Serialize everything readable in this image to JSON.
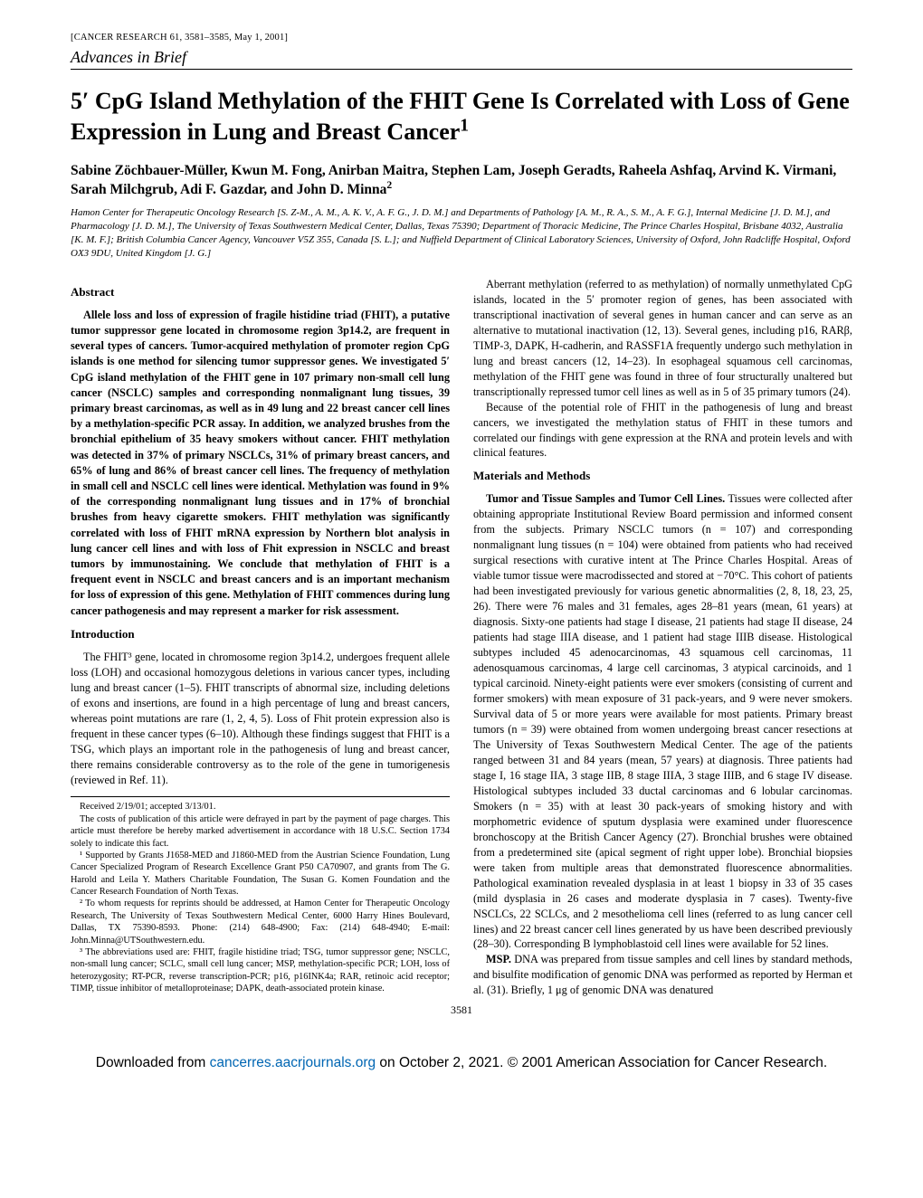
{
  "header_ref": "[CANCER RESEARCH 61, 3581–3585, May 1, 2001]",
  "section_label": "Advances in Brief",
  "title": "5′ CpG Island Methylation of the FHIT Gene Is Correlated with Loss of Gene Expression in Lung and Breast Cancer",
  "title_sup": "1",
  "authors": "Sabine Zöchbauer-Müller, Kwun M. Fong, Anirban Maitra, Stephen Lam, Joseph Geradts, Raheela Ashfaq, Arvind K. Virmani, Sarah Milchgrub, Adi F. Gazdar, and John D. Minna",
  "authors_sup": "2",
  "affiliations": "Hamon Center for Therapeutic Oncology Research [S. Z-M., A. M., A. K. V., A. F. G., J. D. M.] and Departments of Pathology [A. M., R. A., S. M., A. F. G.], Internal Medicine [J. D. M.], and Pharmacology [J. D. M.], The University of Texas Southwestern Medical Center, Dallas, Texas 75390; Department of Thoracic Medicine, The Prince Charles Hospital, Brisbane 4032, Australia [K. M. F.]; British Columbia Cancer Agency, Vancouver V5Z 355, Canada [S. L.]; and Nuffield Department of Clinical Laboratory Sciences, University of Oxford, John Radcliffe Hospital, Oxford OX3 9DU, United Kingdom [J. G.]",
  "left": {
    "abstract_h": "Abstract",
    "abstract": "Allele loss and loss of expression of fragile histidine triad (FHIT), a putative tumor suppressor gene located in chromosome region 3p14.2, are frequent in several types of cancers. Tumor-acquired methylation of promoter region CpG islands is one method for silencing tumor suppressor genes. We investigated 5′ CpG island methylation of the FHIT gene in 107 primary non-small cell lung cancer (NSCLC) samples and corresponding nonmalignant lung tissues, 39 primary breast carcinomas, as well as in 49 lung and 22 breast cancer cell lines by a methylation-specific PCR assay. In addition, we analyzed brushes from the bronchial epithelium of 35 heavy smokers without cancer. FHIT methylation was detected in 37% of primary NSCLCs, 31% of primary breast cancers, and 65% of lung and 86% of breast cancer cell lines. The frequency of methylation in small cell and NSCLC cell lines were identical. Methylation was found in 9% of the corresponding nonmalignant lung tissues and in 17% of bronchial brushes from heavy cigarette smokers. FHIT methylation was significantly correlated with loss of FHIT mRNA expression by Northern blot analysis in lung cancer cell lines and with loss of Fhit expression in NSCLC and breast tumors by immunostaining. We conclude that methylation of FHIT is a frequent event in NSCLC and breast cancers and is an important mechanism for loss of expression of this gene. Methylation of FHIT commences during lung cancer pathogenesis and may represent a marker for risk assessment.",
    "intro_h": "Introduction",
    "intro": "The FHIT³ gene, located in chromosome region 3p14.2, undergoes frequent allele loss (LOH) and occasional homozygous deletions in various cancer types, including lung and breast cancer (1–5). FHIT transcripts of abnormal size, including deletions of exons and insertions, are found in a high percentage of lung and breast cancers, whereas point mutations are rare (1, 2, 4, 5). Loss of Fhit protein expression also is frequent in these cancer types (6–10). Although these findings suggest that FHIT is a TSG, which plays an important role in the pathogenesis of lung and breast cancer, there remains considerable controversy as to the role of the gene in tumorigenesis (reviewed in Ref. 11).",
    "fn_received": "Received 2/19/01; accepted 3/13/01.",
    "fn_costs": "The costs of publication of this article were defrayed in part by the payment of page charges. This article must therefore be hereby marked advertisement in accordance with 18 U.S.C. Section 1734 solely to indicate this fact.",
    "fn1": "¹ Supported by Grants J1658-MED and J1860-MED from the Austrian Science Foundation, Lung Cancer Specialized Program of Research Excellence Grant P50 CA70907, and grants from The G. Harold and Leila Y. Mathers Charitable Foundation, The Susan G. Komen Foundation and the Cancer Research Foundation of North Texas.",
    "fn2": "² To whom requests for reprints should be addressed, at Hamon Center for Therapeutic Oncology Research, The University of Texas Southwestern Medical Center, 6000 Harry Hines Boulevard, Dallas, TX 75390-8593. Phone: (214) 648-4900; Fax: (214) 648-4940; E-mail: John.Minna@UTSouthwestern.edu.",
    "fn3": "³ The abbreviations used are: FHIT, fragile histidine triad; TSG, tumor suppressor gene; NSCLC, non-small lung cancer; SCLC, small cell lung cancer; MSP, methylation-specific PCR; LOH, loss of heterozygosity; RT-PCR, reverse transcription-PCR; p16, p16INK4a; RAR, retinoic acid receptor; TIMP, tissue inhibitor of metalloproteinase; DAPK, death-associated protein kinase."
  },
  "right": {
    "p1": "Aberrant methylation (referred to as methylation) of normally unmethylated CpG islands, located in the 5′ promoter region of genes, has been associated with transcriptional inactivation of several genes in human cancer and can serve as an alternative to mutational inactivation (12, 13). Several genes, including p16, RARβ, TIMP-3, DAPK, H-cadherin, and RASSF1A frequently undergo such methylation in lung and breast cancers (12, 14–23). In esophageal squamous cell carcinomas, methylation of the FHIT gene was found in three of four structurally unaltered but transcriptionally repressed tumor cell lines as well as in 5 of 35 primary tumors (24).",
    "p2": "Because of the potential role of FHIT in the pathogenesis of lung and breast cancers, we investigated the methylation status of FHIT in these tumors and correlated our findings with gene expression at the RNA and protein levels and with clinical features.",
    "mm_h": "Materials and Methods",
    "mm_runin1": "Tumor and Tissue Samples and Tumor Cell Lines.",
    "mm1": " Tissues were collected after obtaining appropriate Institutional Review Board permission and informed consent from the subjects. Primary NSCLC tumors (n = 107) and corresponding nonmalignant lung tissues (n = 104) were obtained from patients who had received surgical resections with curative intent at The Prince Charles Hospital. Areas of viable tumor tissue were macrodissected and stored at −70°C. This cohort of patients had been investigated previously for various genetic abnormalities (2, 8, 18, 23, 25, 26). There were 76 males and 31 females, ages 28–81 years (mean, 61 years) at diagnosis. Sixty-one patients had stage I disease, 21 patients had stage II disease, 24 patients had stage IIIA disease, and 1 patient had stage IIIB disease. Histological subtypes included 45 adenocarcinomas, 43 squamous cell carcinomas, 11 adenosquamous carcinomas, 4 large cell carcinomas, 3 atypical carcinoids, and 1 typical carcinoid. Ninety-eight patients were ever smokers (consisting of current and former smokers) with mean exposure of 31 pack-years, and 9 were never smokers. Survival data of 5 or more years were available for most patients. Primary breast tumors (n = 39) were obtained from women undergoing breast cancer resections at The University of Texas Southwestern Medical Center. The age of the patients ranged between 31 and 84 years (mean, 57 years) at diagnosis. Three patients had stage I, 16 stage IIA, 3 stage IIB, 8 stage IIIA, 3 stage IIIB, and 6 stage IV disease. Histological subtypes included 33 ductal carcinomas and 6 lobular carcinomas. Smokers (n = 35) with at least 30 pack-years of smoking history and with morphometric evidence of sputum dysplasia were examined under fluorescence bronchoscopy at the British Cancer Agency (27). Bronchial brushes were obtained from a predetermined site (apical segment of right upper lobe). Bronchial biopsies were taken from multiple areas that demonstrated fluorescence abnormalities. Pathological examination revealed dysplasia in at least 1 biopsy in 33 of 35 cases (mild dysplasia in 26 cases and moderate dysplasia in 7 cases). Twenty-five NSCLCs, 22 SCLCs, and 2 mesothelioma cell lines (referred to as lung cancer cell lines) and 22 breast cancer cell lines generated by us have been described previously (28–30). Corresponding B lymphoblastoid cell lines were available for 52 lines.",
    "mm_runin2": "MSP.",
    "mm2": " DNA was prepared from tissue samples and cell lines by standard methods, and bisulfite modification of genomic DNA was performed as reported by Herman et al. (31). Briefly, 1 μg of genomic DNA was denatured"
  },
  "page_num": "3581",
  "download_pre": "Downloaded from ",
  "download_link_text": "cancerres.aacrjournals.org",
  "download_post": " on October 2, 2021. © 2001 American Association for Cancer Research."
}
